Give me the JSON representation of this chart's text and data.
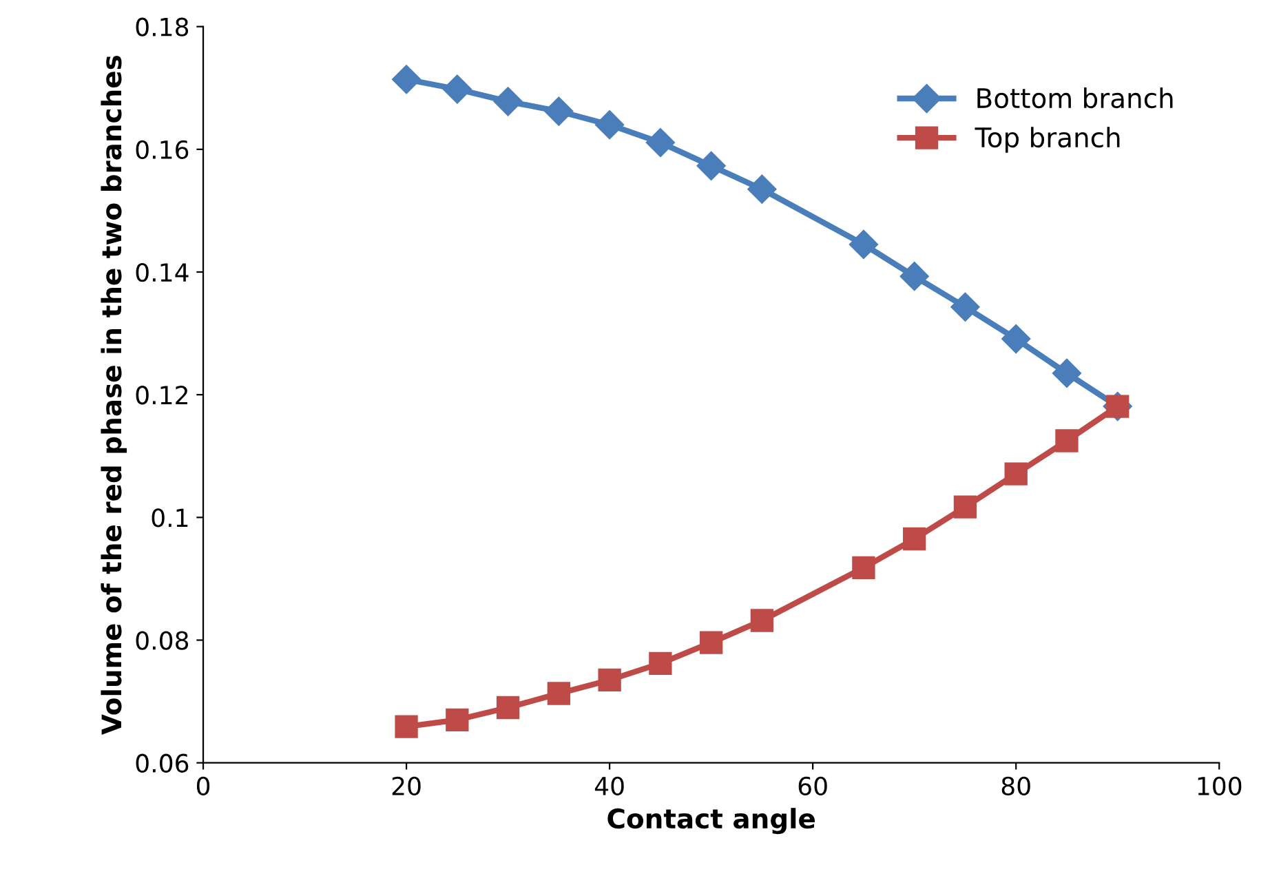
{
  "chart_data": {
    "type": "line",
    "xlabel": "Contact angle",
    "ylabel": "Volume of the red phase in the two branches",
    "xlim": [
      0,
      100
    ],
    "xticks": [
      0,
      20,
      40,
      60,
      80,
      100
    ],
    "ylim": [
      0.06,
      0.18
    ],
    "yticks": [
      0.06,
      0.08,
      0.1,
      0.12,
      0.14,
      0.16,
      0.18
    ],
    "grid": false,
    "legend": "top right",
    "x": [
      20,
      25,
      30,
      35,
      40,
      45,
      50,
      55,
      65,
      70,
      75,
      80,
      85,
      90
    ],
    "series": [
      {
        "name": "Bottom branch",
        "color": "#4a7ebb",
        "marker": "diamond",
        "values": [
          0.1714,
          0.1698,
          0.1678,
          0.1662,
          0.164,
          0.1611,
          0.1573,
          0.1535,
          0.1445,
          0.1393,
          0.1343,
          0.1291,
          0.1235,
          0.1181
        ]
      },
      {
        "name": "Top branch",
        "color": "#be4b48",
        "marker": "square",
        "values": [
          0.0659,
          0.067,
          0.069,
          0.0713,
          0.0735,
          0.0762,
          0.0796,
          0.0832,
          0.0918,
          0.0965,
          0.1017,
          0.1071,
          0.1125,
          0.1181
        ]
      }
    ]
  }
}
